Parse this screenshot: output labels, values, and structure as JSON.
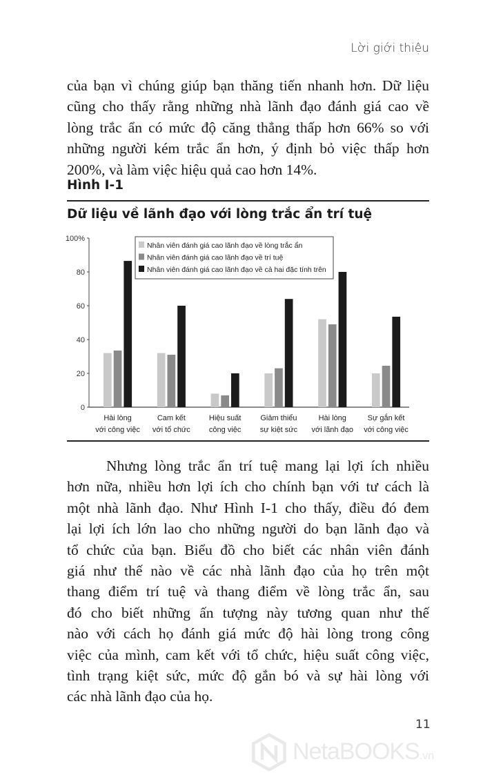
{
  "running_head": "Lời giới thiệu",
  "paragraph_1": [
    "của bạn vì chúng giúp bạn thăng tiến nhanh hơn. Dữ liệu",
    "cũng cho thấy rằng những nhà lãnh đạo đánh giá cao về",
    "lòng trắc ẩn có mức độ căng thẳng thấp hơn 66% so với",
    "những người kém trắc ẩn hơn, ý định bỏ việc thấp hơn",
    "200%, và làm việc hiệu quả cao hơn 14%."
  ],
  "figure": {
    "number": "Hình I-1",
    "title": "Dữ liệu về lãnh đạo với lòng trắc ẩn trí tuệ"
  },
  "chart_data": {
    "type": "bar",
    "title": "Dữ liệu về lãnh đạo với lòng trắc ẩn trí tuệ",
    "categories": [
      [
        "Hài lòng",
        "với công việc"
      ],
      [
        "Cam kết",
        "với tổ chức"
      ],
      [
        "Hiệu suất",
        "công việc"
      ],
      [
        "Giảm thiểu",
        "sự kiệt sức"
      ],
      [
        "Hài lòng",
        "với lãnh đạo"
      ],
      [
        "Sự gắn kết",
        "với công việc"
      ]
    ],
    "series": [
      {
        "name": "Nhân viên đánh giá cao lãnh đạo về lòng trắc ẩn",
        "color": "#c9c9c9",
        "values": [
          32,
          32,
          8,
          20,
          52,
          20
        ]
      },
      {
        "name": "Nhân viên đánh giá cao lãnh đạo về trí tuệ",
        "color": "#8a8a8a",
        "values": [
          33.5,
          31,
          7,
          23,
          49,
          24.5
        ]
      },
      {
        "name": "Nhân viên đánh giá cao lãnh đạo về cả hai đặc tính trên",
        "color": "#1b1b1b",
        "values": [
          86.5,
          60,
          20,
          64,
          80,
          53.5
        ]
      }
    ],
    "ylim": [
      0,
      100
    ],
    "yticks": [
      "0",
      "20",
      "40",
      "60",
      "80",
      "100%"
    ],
    "ytick_values": [
      0,
      20,
      40,
      60,
      80,
      100
    ],
    "xlabel": "",
    "ylabel": "",
    "grid": false,
    "legend": "top-center"
  },
  "paragraph_2": [
    "Nhưng lòng trắc ẩn trí tuệ mang lại lợi ích nhiều",
    "hơn nữa, nhiều hơn lợi ích cho chính bạn với tư cách là",
    "một nhà lãnh đạo. Như Hình I-1 cho thấy, điều đó đem",
    "lại lợi ích lớn lao cho những người do bạn lãnh đạo và",
    "tổ chức của bạn. Biểu đồ cho biết các nhân viên đánh",
    "giá như thế nào về các nhà lãnh đạo của họ trên một",
    "thang điểm trí tuệ và thang điểm về lòng trắc ẩn, sau",
    "đó cho biết những ấn tượng này tương quan như thế",
    "nào với cách họ đánh giá mức độ hài lòng trong công",
    "việc của mình, cam kết với tổ chức, hiệu suất công việc,",
    "tình trạng kiệt sức, mức độ gắn bó và sự hài lòng với",
    "các nhà lãnh đạo của họ."
  ],
  "page_number": "11",
  "watermark": {
    "brand": "NetaBOOKS",
    "suffix": ".vn",
    "icon": "netabooks-n-hexagon-logo"
  }
}
